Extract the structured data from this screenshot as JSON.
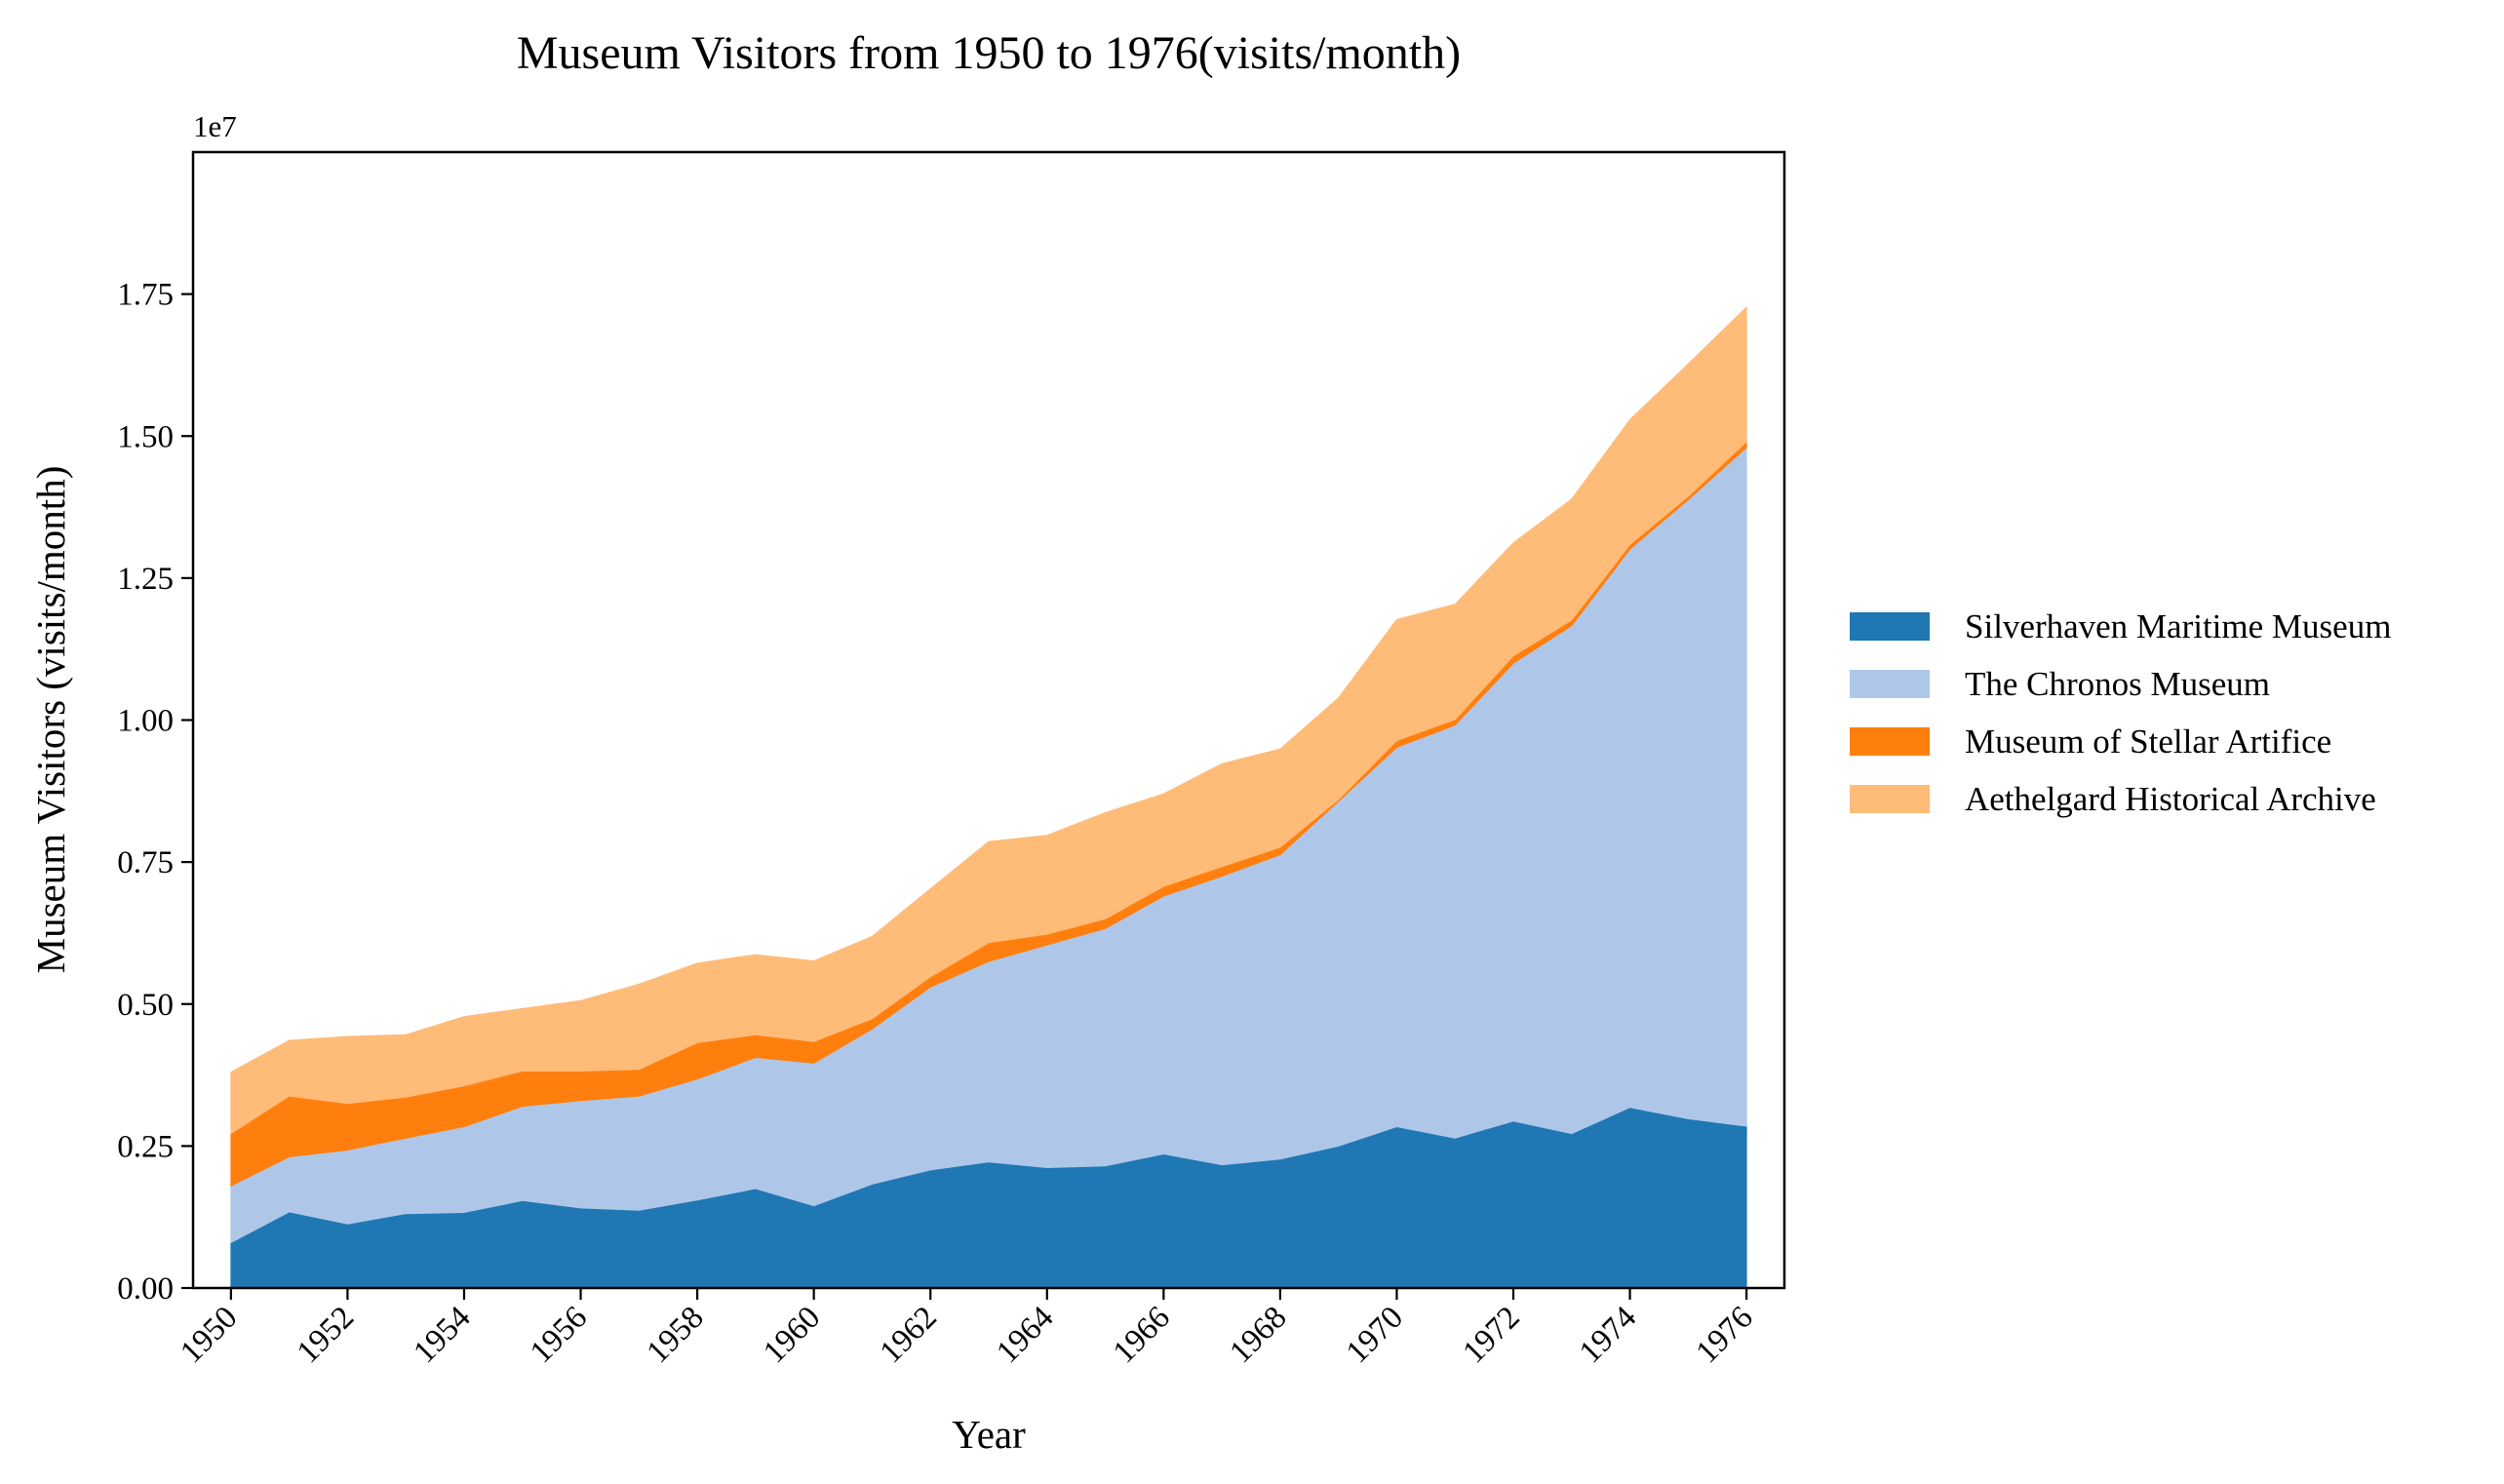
{
  "chart_data": {
    "type": "area",
    "stacked": true,
    "title": "Museum Visitors from 1950 to 1976(visits/month)",
    "xlabel": "Year",
    "ylabel": "Museum Visitors (visits/month)",
    "y_offset_label": "1e7",
    "x": [
      1950,
      1951,
      1952,
      1953,
      1954,
      1955,
      1956,
      1957,
      1958,
      1959,
      1960,
      1961,
      1962,
      1963,
      1964,
      1965,
      1966,
      1967,
      1968,
      1969,
      1970,
      1971,
      1972,
      1973,
      1974,
      1975,
      1976
    ],
    "xlim": [
      1949.35,
      1976.65
    ],
    "ylim": [
      0,
      2.0
    ],
    "y_unit_multiplier": 10000000,
    "x_ticks": [
      "1950",
      "1952",
      "1954",
      "1956",
      "1958",
      "1960",
      "1962",
      "1964",
      "1966",
      "1968",
      "1970",
      "1972",
      "1974",
      "1976"
    ],
    "y_ticks": [
      "0.00",
      "0.25",
      "0.50",
      "0.75",
      "1.00",
      "1.25",
      "1.50",
      "1.75"
    ],
    "grid": false,
    "legend_position": "right",
    "series": [
      {
        "name": "Silverhaven Maritime Museum",
        "color": "#1f77b4",
        "values": [
          0.08,
          0.134,
          0.113,
          0.131,
          0.133,
          0.154,
          0.141,
          0.137,
          0.155,
          0.175,
          0.145,
          0.183,
          0.208,
          0.222,
          0.212,
          0.215,
          0.236,
          0.217,
          0.227,
          0.25,
          0.284,
          0.264,
          0.294,
          0.272,
          0.318,
          0.298,
          0.285
        ]
      },
      {
        "name": "The Chronos Museum",
        "color": "#aec7e8",
        "values": [
          0.1,
          0.097,
          0.13,
          0.133,
          0.151,
          0.166,
          0.189,
          0.201,
          0.213,
          0.231,
          0.251,
          0.273,
          0.322,
          0.353,
          0.392,
          0.418,
          0.454,
          0.508,
          0.536,
          0.607,
          0.668,
          0.727,
          0.806,
          0.894,
          0.983,
          1.09,
          1.195
        ]
      },
      {
        "name": "Museum of Stellar Artifice",
        "color": "#ff7f0e",
        "values": [
          0.092,
          0.107,
          0.082,
          0.072,
          0.072,
          0.062,
          0.052,
          0.047,
          0.064,
          0.04,
          0.038,
          0.018,
          0.018,
          0.033,
          0.019,
          0.017,
          0.017,
          0.017,
          0.013,
          0.003,
          0.012,
          0.01,
          0.013,
          0.01,
          0.008,
          0.006,
          0.01
        ]
      },
      {
        "name": "Aethelgard Historical Archive",
        "color": "#ffbb78",
        "values": [
          0.108,
          0.098,
          0.118,
          0.11,
          0.122,
          0.11,
          0.124,
          0.15,
          0.14,
          0.141,
          0.142,
          0.145,
          0.155,
          0.178,
          0.174,
          0.187,
          0.163,
          0.181,
          0.173,
          0.179,
          0.213,
          0.203,
          0.199,
          0.213,
          0.22,
          0.233,
          0.237
        ]
      }
    ]
  }
}
